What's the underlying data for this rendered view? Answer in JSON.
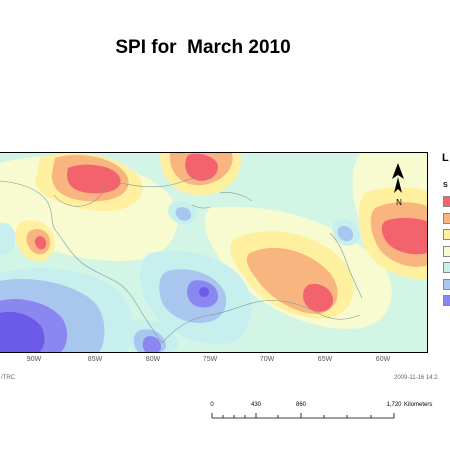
{
  "title": "SPI for  March 2010",
  "legend": {
    "title": "L",
    "subtitle": "S",
    "colors": [
      "#f3636d",
      "#f9b57f",
      "#fff0a0",
      "#f8fbd0",
      "#c7efee",
      "#a9c6ee",
      "#8a87f0"
    ]
  },
  "colors": {
    "background_near_normal": "#d2f5e6",
    "very_wet": "#f3636d",
    "moderately_wet": "#f9b57f",
    "slightly_wet": "#fff0a0",
    "near_normal_light": "#f8fbd0",
    "slightly_dry": "#a9c6ee",
    "moderately_dry": "#8a87f0",
    "extremely_dry": "#6c5be8"
  },
  "map": {
    "longitude_labels": [
      "90W",
      "85W",
      "80W",
      "75W",
      "70W",
      "65W",
      "60W"
    ],
    "north_arrow_label": "N"
  },
  "footer": {
    "left_text": "/TRC",
    "right_text": "2009-11-16  14:2"
  },
  "scale_bar": {
    "ticks": [
      "0",
      "430",
      "860",
      "1,720"
    ],
    "unit": "Kilometers"
  }
}
